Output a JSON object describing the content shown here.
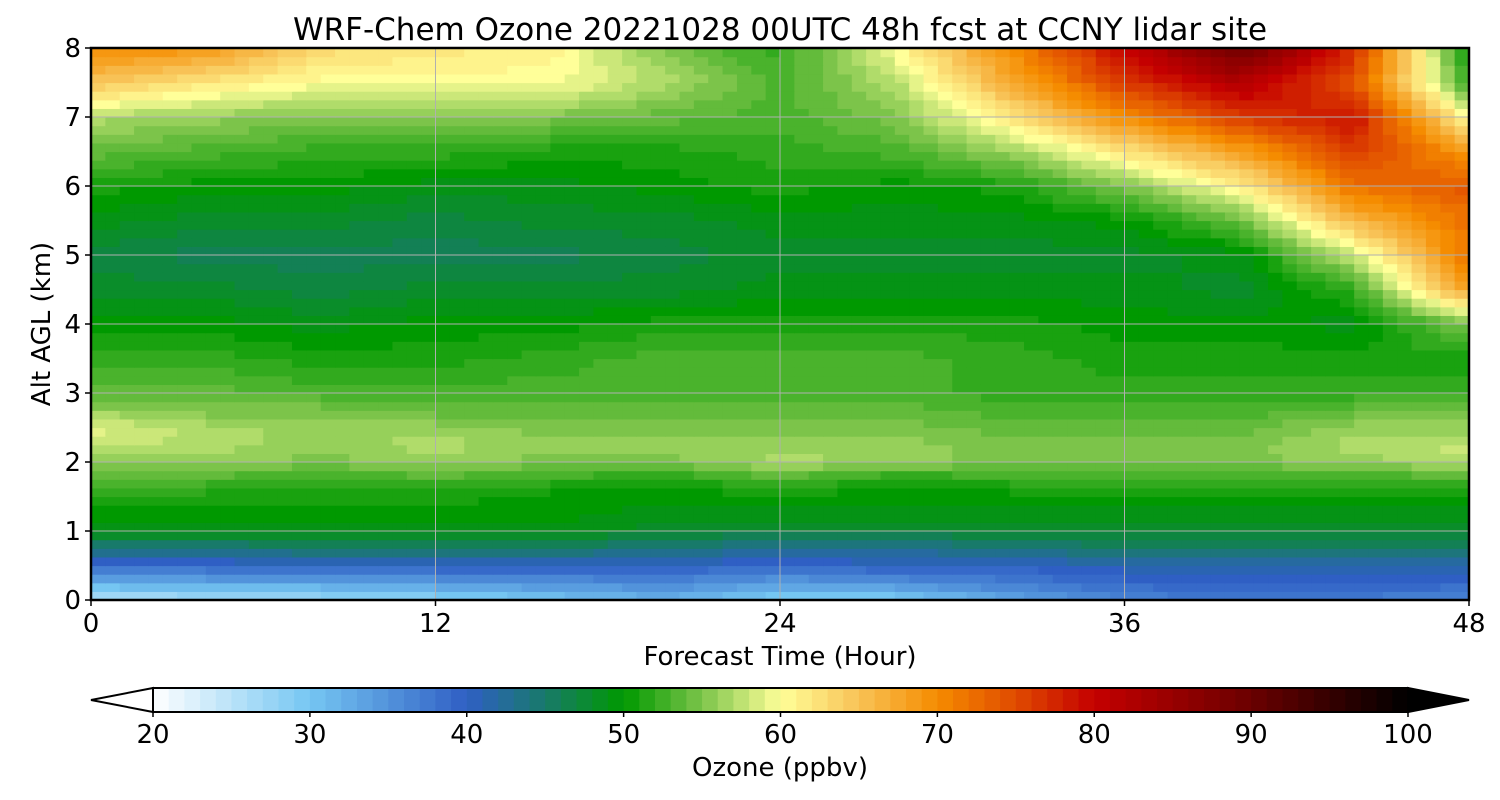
{
  "chart_data": {
    "type": "heatmap",
    "title": "WRF-Chem Ozone  20221028 00UTC 48h fcst at CCNY lidar site",
    "xlabel": "Forecast Time (Hour)",
    "ylabel": "Alt AGL (km)",
    "xlim": [
      0,
      48
    ],
    "ylim": [
      0,
      8
    ],
    "x_ticks": [
      0,
      12,
      24,
      36,
      48
    ],
    "y_ticks": [
      0,
      1,
      2,
      3,
      4,
      5,
      6,
      7,
      8
    ],
    "grid": true,
    "colorbar": {
      "label": "Ozone  (ppbv)",
      "range": [
        20,
        100
      ],
      "ticks": [
        20,
        30,
        40,
        50,
        60,
        70,
        80,
        90,
        100
      ],
      "extend": "both",
      "stops": [
        {
          "v": 20,
          "c": "#ffffff"
        },
        {
          "v": 30,
          "c": "#75c6f2"
        },
        {
          "v": 40,
          "c": "#2f5fc4"
        },
        {
          "v": 45,
          "c": "#187a6a"
        },
        {
          "v": 50,
          "c": "#009900"
        },
        {
          "v": 55,
          "c": "#7cc44a"
        },
        {
          "v": 60,
          "c": "#ffff99"
        },
        {
          "v": 65,
          "c": "#f8c256"
        },
        {
          "v": 70,
          "c": "#f58c00"
        },
        {
          "v": 75,
          "c": "#e04a00"
        },
        {
          "v": 80,
          "c": "#c40000"
        },
        {
          "v": 90,
          "c": "#6a0000"
        },
        {
          "v": 100,
          "c": "#000000"
        }
      ]
    },
    "times": [
      0,
      4,
      8,
      12,
      16,
      20,
      24,
      28,
      32,
      36,
      40,
      44,
      48
    ],
    "heights": [
      0,
      0.25,
      0.5,
      0.75,
      1,
      1.25,
      1.5,
      1.75,
      2,
      2.25,
      2.5,
      2.75,
      3,
      3.5,
      4,
      4.5,
      5,
      5.5,
      6,
      6.5,
      7,
      7.5,
      8
    ],
    "ozone_ppbv": [
      [
        25,
        26,
        27,
        28,
        30,
        32,
        29,
        29,
        33,
        36,
        38,
        37,
        36
      ],
      [
        32,
        33,
        33,
        34,
        35,
        36,
        34,
        35,
        37,
        39,
        40,
        40,
        39
      ],
      [
        38,
        39,
        40,
        40,
        40,
        40,
        39,
        40,
        40,
        41,
        41,
        41,
        41
      ],
      [
        44,
        44,
        45,
        45,
        45,
        44,
        43,
        43,
        44,
        45,
        45,
        45,
        45
      ],
      [
        49,
        49,
        49,
        49,
        49,
        48,
        47,
        47,
        48,
        48,
        48,
        48,
        48
      ],
      [
        50,
        50,
        50,
        50,
        50,
        49,
        49,
        49,
        49,
        49,
        49,
        49,
        49
      ],
      [
        51,
        51,
        51,
        51,
        50,
        50,
        50,
        50,
        50,
        50,
        50,
        50,
        50
      ],
      [
        53,
        53,
        52,
        53,
        52,
        51,
        53,
        51,
        52,
        52,
        52,
        52,
        53
      ],
      [
        56,
        56,
        55,
        56,
        55,
        55,
        57,
        56,
        55,
        55,
        55,
        56,
        57
      ],
      [
        58,
        57,
        56,
        57,
        56,
        56,
        56,
        56,
        55,
        55,
        55,
        57,
        58
      ],
      [
        59,
        57,
        56,
        56,
        55,
        55,
        55,
        55,
        54,
        54,
        54,
        56,
        56
      ],
      [
        56,
        55,
        55,
        54,
        54,
        54,
        54,
        54,
        53,
        53,
        53,
        54,
        54
      ],
      [
        54,
        54,
        53,
        53,
        53,
        53,
        53,
        53,
        52,
        52,
        52,
        52,
        52
      ],
      [
        52,
        52,
        51,
        51,
        52,
        53,
        53,
        53,
        52,
        51,
        51,
        51,
        51
      ],
      [
        50,
        50,
        49,
        50,
        50,
        51,
        51,
        51,
        51,
        50,
        50,
        49,
        55
      ],
      [
        48,
        48,
        47,
        48,
        48,
        48,
        49,
        49,
        49,
        49,
        48,
        52,
        68
      ],
      [
        47,
        46,
        46,
        46,
        46,
        47,
        48,
        48,
        48,
        48,
        49,
        58,
        72
      ],
      [
        49,
        48,
        48,
        47,
        48,
        48,
        49,
        49,
        49,
        50,
        54,
        66,
        72
      ],
      [
        51,
        50,
        50,
        49,
        49,
        50,
        51,
        50,
        51,
        55,
        61,
        72,
        74
      ],
      [
        54,
        53,
        52,
        52,
        51,
        51,
        52,
        53,
        56,
        62,
        68,
        76,
        69
      ],
      [
        57,
        56,
        55,
        55,
        55,
        54,
        53,
        55,
        62,
        70,
        76,
        79,
        60
      ],
      [
        65,
        62,
        60,
        60,
        60,
        57,
        53,
        57,
        67,
        76,
        82,
        74,
        52
      ],
      [
        70,
        69,
        63,
        62,
        61,
        55,
        52,
        60,
        70,
        80,
        90,
        77,
        50
      ]
    ]
  }
}
